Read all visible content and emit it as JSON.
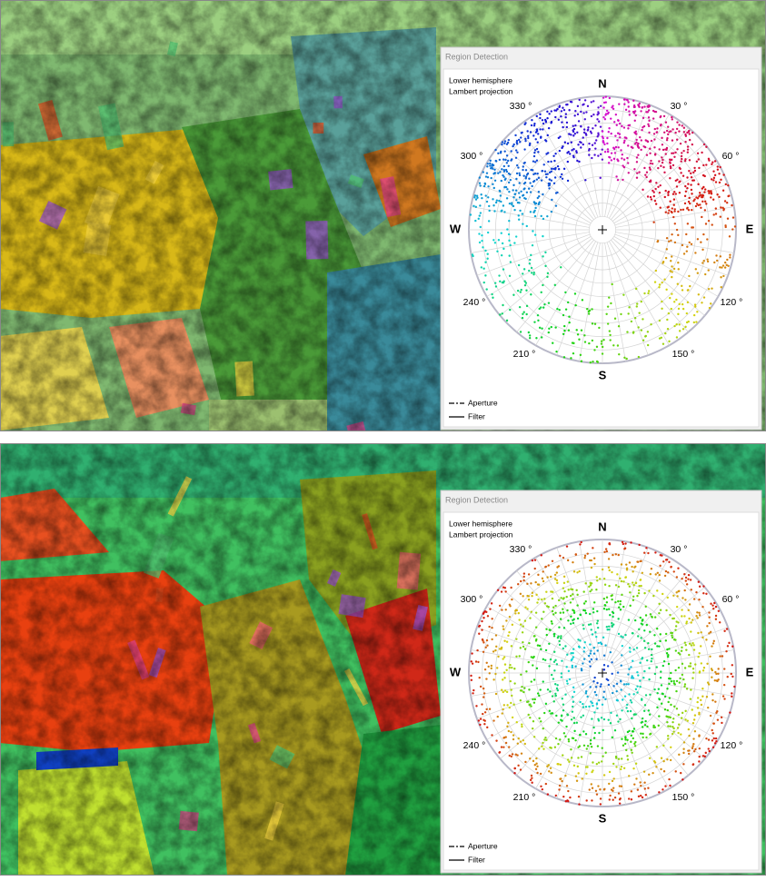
{
  "panels": [
    {
      "window_title": "Region Detection",
      "projection": [
        "Lower hemisphere",
        "Lambert projection"
      ],
      "directions": {
        "N": "N",
        "E": "E",
        "S": "S",
        "W": "W"
      },
      "angle_labels": [
        "330 °",
        "30 °",
        "300 °",
        "60 °",
        "240 °",
        "120 °",
        "210 °",
        "150 °"
      ],
      "legend": [
        "Aperture",
        "Filter"
      ]
    },
    {
      "window_title": "Region Detection",
      "projection": [
        "Lower hemisphere",
        "Lambert projection"
      ],
      "directions": {
        "N": "N",
        "E": "E",
        "S": "S",
        "W": "W"
      },
      "angle_labels": [
        "330 °",
        "30 °",
        "300 °",
        "60 °",
        "240 °",
        "120 °",
        "210 °",
        "150 °"
      ],
      "legend": [
        "Aperture",
        "Filter"
      ]
    }
  ]
}
